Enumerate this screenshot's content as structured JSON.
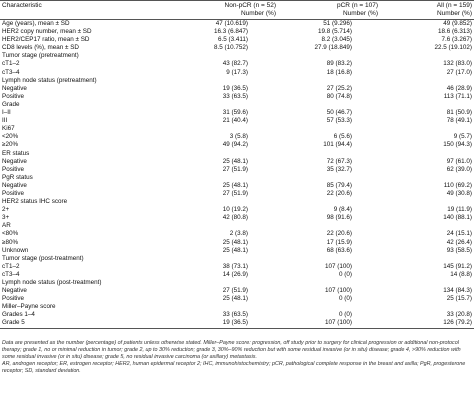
{
  "columns": {
    "characteristic": "Characteristic",
    "nonpcr": "Non-pCR (n = 52)",
    "pcr": "pCR (n = 107)",
    "all": "All (n = 159)",
    "number": "Number (%)"
  },
  "rows": [
    [
      "Age (years), mean ± SD",
      "47 (10.619)",
      "51 (9.296)",
      "49 (9.852)"
    ],
    [
      "HER2 copy number, mean ± SD",
      "16.3 (6.847)",
      "19.8 (5.714)",
      "18.6 (6.313)"
    ],
    [
      "HER2/CEP17 ratio, mean ± SD",
      "6.5 (3.411)",
      "8.2 (3.045)",
      "7.6 (3.267)"
    ],
    [
      "CD8 levels (%), mean ± SD",
      "8.5 (10.752)",
      "27.9 (18.849)",
      "22.5 (19.102)"
    ],
    [
      "Tumor stage (pretreatment)",
      "",
      "",
      ""
    ],
    [
      "cT1–2",
      "43 (82.7)",
      "89 (83.2)",
      "132 (83.0)"
    ],
    [
      "cT3–4",
      "9 (17.3)",
      "18 (16.8)",
      "27 (17.0)"
    ],
    [
      "Lymph node status (pretreatment)",
      "",
      "",
      ""
    ],
    [
      "Negative",
      "19 (36.5)",
      "27 (25.2)",
      "46 (28.9)"
    ],
    [
      "Positive",
      "33 (63.5)",
      "80 (74.8)",
      "113 (71.1)"
    ],
    [
      "Grade",
      "",
      "",
      ""
    ],
    [
      "I–II",
      "31 (59.6)",
      "50 (46.7)",
      "81 (50.9)"
    ],
    [
      "III",
      "21 (40.4)",
      "57 (53.3)",
      "78 (49.1)"
    ],
    [
      "Ki67",
      "",
      "",
      ""
    ],
    [
      "<20%",
      "3 (5.8)",
      "6 (5.6)",
      "9 (5.7)"
    ],
    [
      "≥20%",
      "49 (94.2)",
      "101 (94.4)",
      "150 (94.3)"
    ],
    [
      "ER status",
      "",
      "",
      ""
    ],
    [
      "Negative",
      "25 (48.1)",
      "72 (67.3)",
      "97 (61.0)"
    ],
    [
      "Positive",
      "27 (51.9)",
      "35 (32.7)",
      "62 (39.0)"
    ],
    [
      "PgR status",
      "",
      "",
      ""
    ],
    [
      "Negative",
      "25 (48.1)",
      "85 (79.4)",
      "110 (69.2)"
    ],
    [
      "Positive",
      "27 (51.9)",
      "22 (20.6)",
      "49 (30.8)"
    ],
    [
      "HER2 status IHC score",
      "",
      "",
      ""
    ],
    [
      "2+",
      "10 (19.2)",
      "9 (8.4)",
      "19 (11.9)"
    ],
    [
      "3+",
      "42 (80.8)",
      "98 (91.6)",
      "140 (88.1)"
    ],
    [
      "AR",
      "",
      "",
      ""
    ],
    [
      "<80%",
      "2 (3.8)",
      "22 (20.6)",
      "24 (15.1)"
    ],
    [
      "≥80%",
      "25 (48.1)",
      "17 (15.9)",
      "42 (26.4)"
    ],
    [
      "Unknown",
      "25 (48.1)",
      "68 (63.6)",
      "93 (58.5)"
    ],
    [
      "Tumor stage (post-treatment)",
      "",
      "",
      ""
    ],
    [
      "cT1–2",
      "38 (73.1)",
      "107 (100)",
      "145 (91.2)"
    ],
    [
      "cT3–4",
      "14 (26.9)",
      "0 (0)",
      "14 (8.8)"
    ],
    [
      "Lymph node status (post-treatment)",
      "",
      "",
      ""
    ],
    [
      "Negative",
      "27 (51.9)",
      "107 (100)",
      "134 (84.3)"
    ],
    [
      "Positive",
      "25 (48.1)",
      "0 (0)",
      "25 (15.7)"
    ],
    [
      "Miller–Payne score",
      "",
      "",
      ""
    ],
    [
      "Grades 1–4",
      "33 (63.5)",
      "0 (0)",
      "33 (20.8)"
    ],
    [
      "Grade 5",
      "19 (36.5)",
      "107 (100)",
      "126 (79.2)"
    ]
  ],
  "notes": {
    "line1": "Data are presented as the number (percentage) of patients unless otherwise stated. Miller–Payne score: progression, off study prior to surgery for clinical progression or additional non-protocol therapy; grade 1, no or minimal reduction in tumor; grade 2, up to 30% reduction; grade 3, 30%–90% reduction but with some residual invasive (or in situ) disease; grade 4, >90% reduction with some residual invasive (or in situ) disease; grade 5, no residual invasive carcinoma (or axillary) metastasis.",
    "line2": "AR, androgen receptor; ER, estrogen receptor; HER2, human epidermal receptor 2; IHC, immunohistochemistry; pCR, pathological complete response in the breast and axilla; PgR, progesterone receptor; SD, standard deviation."
  }
}
